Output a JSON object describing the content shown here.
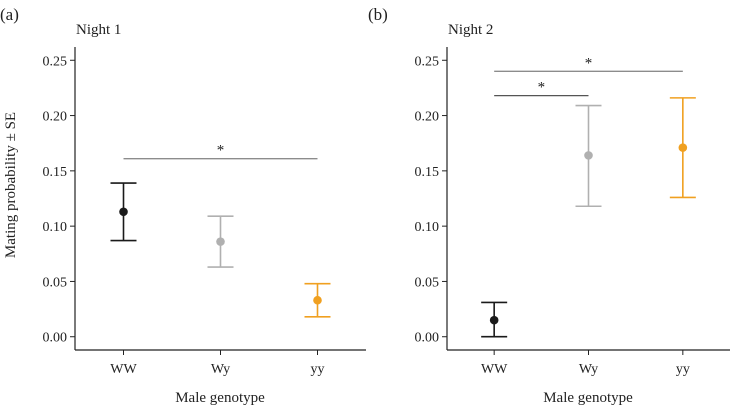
{
  "figure": {
    "ylabel": "Mating probability ± SE",
    "xlabel": "Male genotype"
  },
  "chart_data": [
    {
      "type": "scatter",
      "panel_tag": "(a)",
      "title": "Night 1",
      "xlabel": "Male genotype",
      "ylabel": "Mating probability ± SE",
      "categories": [
        "WW",
        "Wy",
        "yy"
      ],
      "values": [
        0.113,
        0.086,
        0.033
      ],
      "lower": [
        0.087,
        0.063,
        0.018
      ],
      "upper": [
        0.139,
        0.109,
        0.048
      ],
      "colors": [
        "#1a1a1a",
        "#b0b0b0",
        "#f0a020"
      ],
      "ylim": [
        -0.012,
        0.262
      ],
      "yticks": [
        0.0,
        0.05,
        0.1,
        0.15,
        0.2,
        0.25
      ],
      "ytick_labels": [
        "0.00",
        "0.05",
        "0.10",
        "0.15",
        "0.20",
        "0.25"
      ],
      "significance": [
        {
          "from": "WW",
          "to": "yy",
          "level": 0.161,
          "label": "*",
          "color": "#8c8c8c"
        }
      ]
    },
    {
      "type": "scatter",
      "panel_tag": "(b)",
      "title": "Night 2",
      "xlabel": "Male genotype",
      "ylabel": "",
      "categories": [
        "WW",
        "Wy",
        "yy"
      ],
      "values": [
        0.015,
        0.164,
        0.171
      ],
      "lower": [
        0.0,
        0.118,
        0.126
      ],
      "upper": [
        0.031,
        0.209,
        0.216
      ],
      "colors": [
        "#1a1a1a",
        "#b0b0b0",
        "#f0a020"
      ],
      "ylim": [
        -0.012,
        0.262
      ],
      "yticks": [
        0.0,
        0.05,
        0.1,
        0.15,
        0.2,
        0.25
      ],
      "ytick_labels": [
        "0.00",
        "0.05",
        "0.10",
        "0.15",
        "0.20",
        "0.25"
      ],
      "significance": [
        {
          "from": "WW",
          "to": "yy",
          "level": 0.24,
          "label": "*",
          "color": "#8c8c8c"
        },
        {
          "from": "WW",
          "to": "Wy",
          "level": 0.218,
          "label": "*",
          "color": "#555555"
        }
      ]
    }
  ]
}
